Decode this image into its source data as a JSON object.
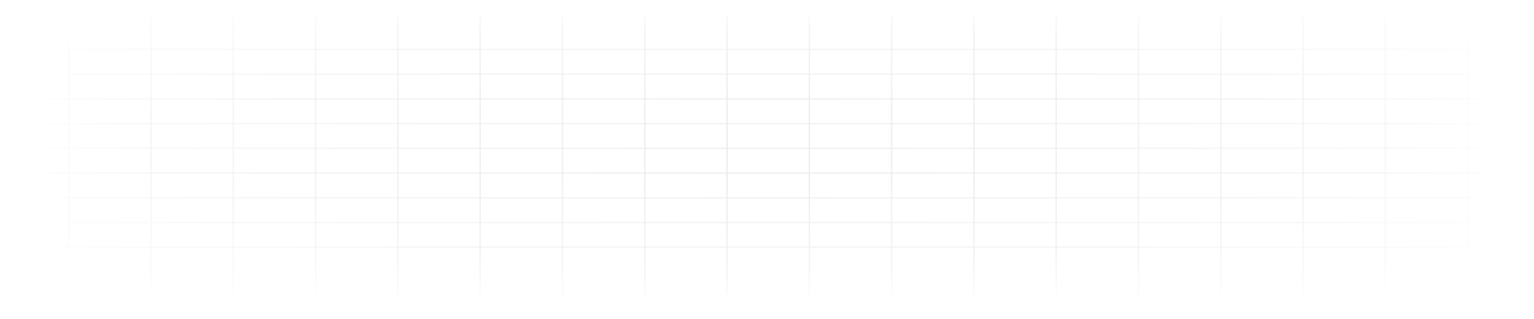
{
  "background": {
    "color": "#ffffff",
    "grid_line_color": "#e9e9ee",
    "pattern": "faded-grid"
  }
}
